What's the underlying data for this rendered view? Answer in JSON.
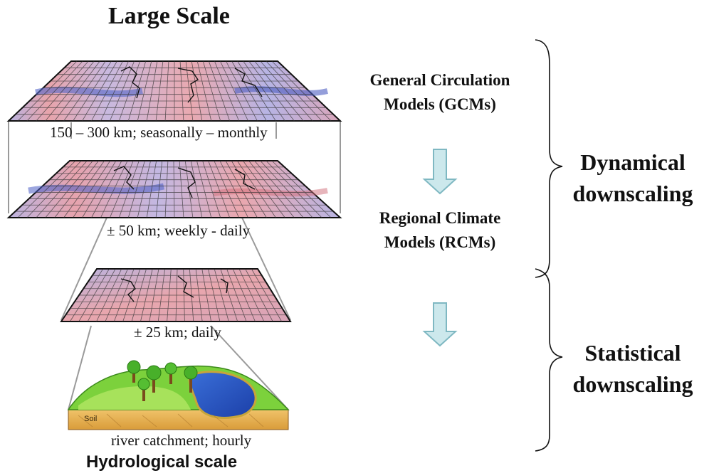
{
  "title_top": "Large Scale",
  "title_bottom": "Hydrological scale",
  "layers": [
    {
      "label": "150 – 300 km; seasonally – monthly"
    },
    {
      "label": "± 50 km; weekly - daily"
    },
    {
      "label": "± 25 km; daily"
    },
    {
      "label": "river catchment; hourly",
      "soil_label": "Soil"
    }
  ],
  "models": {
    "gcm": "General Circulation Models (GCMs)",
    "rcm": "Regional Climate Models (RCMs)"
  },
  "brackets": {
    "dynamical": "Dynamical downscaling",
    "statistical": "Statistical downscaling"
  },
  "colors": {
    "arrow_fill": "#cce8ec",
    "arrow_stroke": "#7fb8c2",
    "map_red": "#e9a3a8",
    "map_blue": "#8f96d6",
    "grid": "#222222"
  }
}
